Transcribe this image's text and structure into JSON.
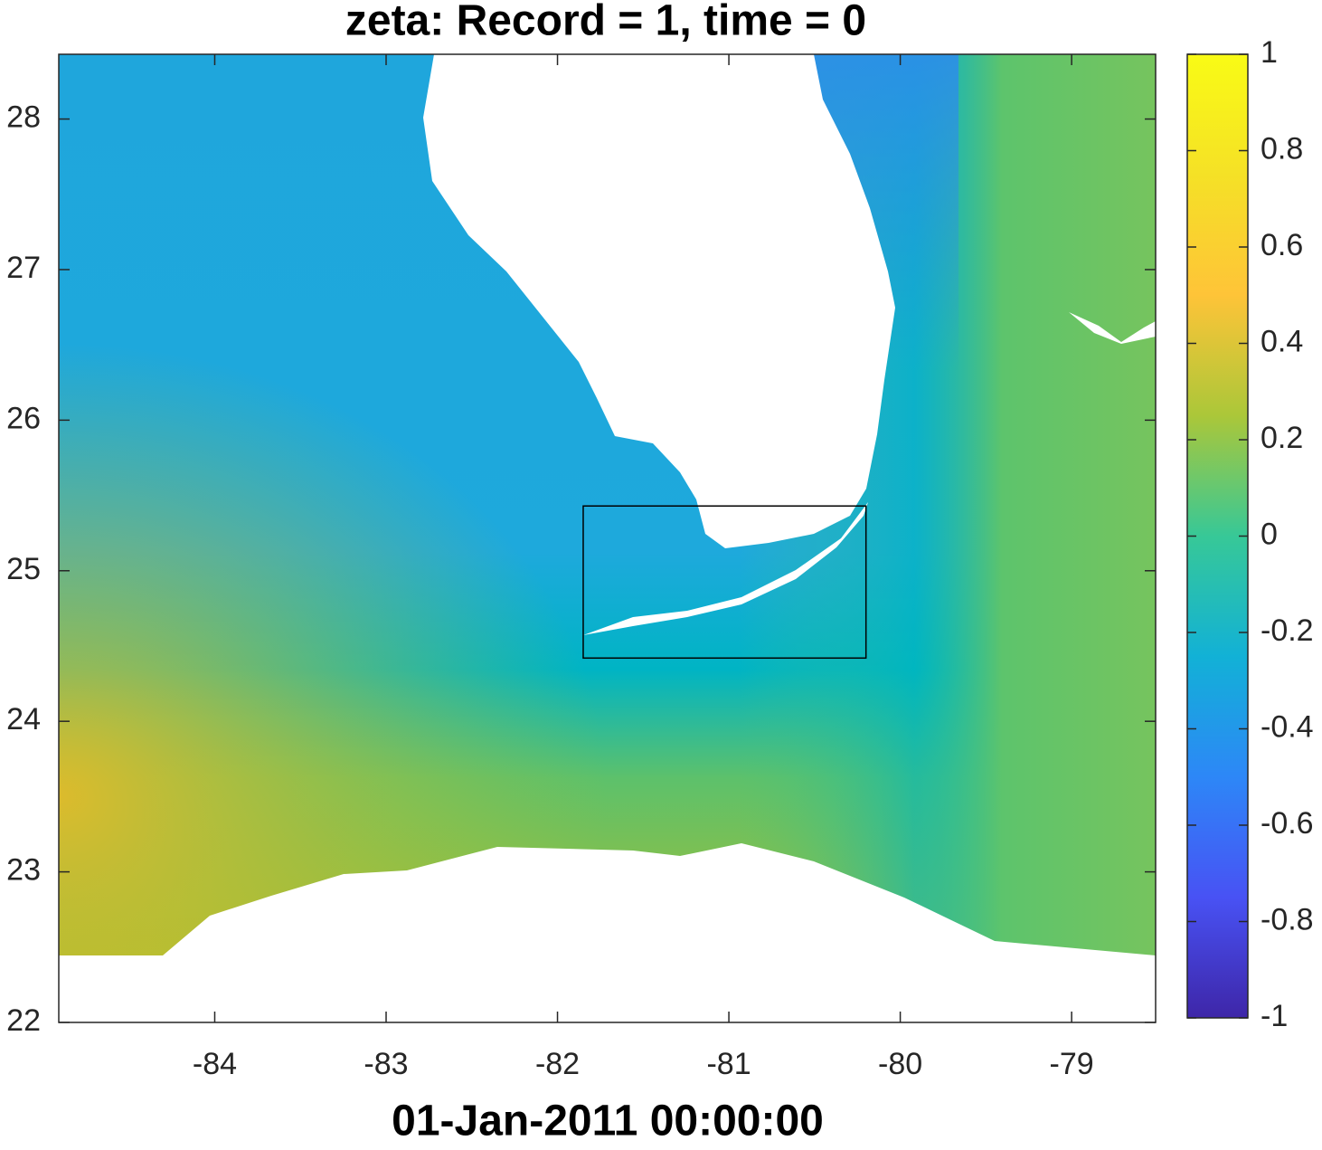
{
  "chart_data": {
    "type": "heatmap",
    "title": "zeta:    Record = 1,    time = 0",
    "x_label": "01-Jan-2011 00:00:00",
    "xlim": [
      -84.91,
      -78.51
    ],
    "xticks": [
      -84,
      -83,
      -82,
      -81,
      -80,
      -79
    ],
    "ylim": [
      22,
      28.43
    ],
    "yticks": [
      22,
      23,
      24,
      25,
      26,
      27,
      28
    ],
    "clim": [
      -1,
      1
    ],
    "cticks": [
      -1,
      -0.8,
      -0.6,
      -0.4,
      -0.2,
      0,
      0.2,
      0.4,
      0.6,
      0.8,
      1
    ],
    "colormap": [
      "#3e26a8",
      "#4852f4",
      "#2d87f7",
      "#12b1d6",
      "#37c897",
      "#abc739",
      "#fec438",
      "#f5e126",
      "#f9fb15"
    ],
    "box": {
      "x": [
        -81.85,
        -80.2
      ],
      "y": [
        24.42,
        25.43
      ]
    }
  }
}
